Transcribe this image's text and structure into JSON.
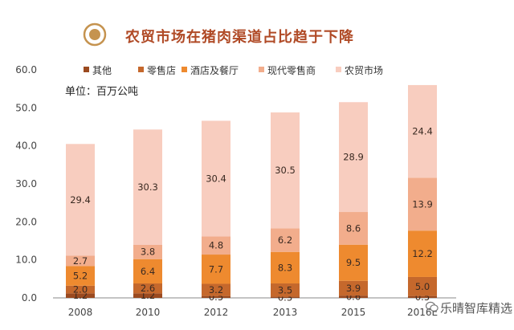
{
  "header": {
    "title": "农贸市场在猪肉渠道占比趋于下降"
  },
  "watermark": {
    "text": "乐晴智库精选"
  },
  "chart_data": {
    "type": "bar",
    "stacked": true,
    "title": "农贸市场在猪肉渠道占比趋于下降",
    "unit_label": "单位：百万公吨",
    "xlabel": "",
    "ylabel": "",
    "ylim": [
      0,
      60
    ],
    "yticks": [
      "0.0",
      "10.0",
      "20.0",
      "30.0",
      "40.0",
      "50.0",
      "60.0"
    ],
    "grid": false,
    "legend_position": "top",
    "categories": [
      "2008",
      "2010",
      "2012",
      "2013",
      "2015",
      "2016E"
    ],
    "series": [
      {
        "name": "其他",
        "color": "#9b4a1f",
        "values": [
          1.2,
          1.2,
          0.5,
          0.3,
          0.6,
          0.5
        ],
        "labels": [
          "1.2",
          "1.2",
          "0.5",
          "0.3",
          "0.6",
          "0.5"
        ]
      },
      {
        "name": "零售店",
        "color": "#c5682c",
        "values": [
          2.0,
          2.6,
          3.2,
          3.5,
          3.9,
          5.0
        ],
        "labels": [
          "2.0",
          "2.6",
          "3.2",
          "3.5",
          "3.9",
          "5.0"
        ]
      },
      {
        "name": "酒店及餐厅",
        "color": "#ee8a2f",
        "values": [
          5.2,
          6.4,
          7.7,
          8.3,
          9.5,
          12.2
        ],
        "labels": [
          "5.2",
          "6.4",
          "7.7",
          "8.3",
          "9.5",
          "12.2"
        ]
      },
      {
        "name": "现代零售商",
        "color": "#f2ad8c",
        "values": [
          2.7,
          3.8,
          4.8,
          6.2,
          8.6,
          13.9
        ],
        "labels": [
          "2.7",
          "3.8",
          "4.8",
          "6.2",
          "8.6",
          "13.9"
        ]
      },
      {
        "name": "农贸市场",
        "color": "#f8cdbf",
        "values": [
          29.4,
          30.3,
          30.4,
          30.5,
          28.9,
          24.4
        ],
        "labels": [
          "29.4",
          "30.3",
          "30.4",
          "30.5",
          "28.9",
          "24.4"
        ]
      }
    ]
  }
}
